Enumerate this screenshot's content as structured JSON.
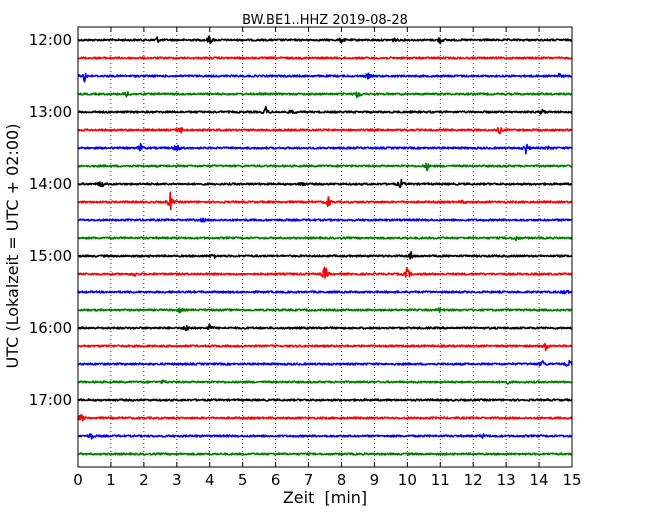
{
  "chart_data": {
    "type": "line",
    "title": "BW.BE1..HHZ 2019-08-28",
    "xlabel": "Zeit  [min]",
    "ylabel": "UTC (Lokalzeit = UTC + 02:00)",
    "xlim": [
      0,
      15
    ],
    "x_ticks": [
      0,
      1,
      2,
      3,
      4,
      5,
      6,
      7,
      8,
      9,
      10,
      11,
      12,
      13,
      14,
      15
    ],
    "y_tick_labels": [
      "12:00",
      "13:00",
      "14:00",
      "15:00",
      "16:00",
      "17:00"
    ],
    "grid": "vertical dotted",
    "trace_colors": [
      "#000000",
      "#ff0000",
      "#0000ff",
      "#008000"
    ],
    "traces": [
      {
        "start": "12:00",
        "events": [
          {
            "t": 2.4,
            "a": 0.3
          },
          {
            "t": 4.0,
            "a": 0.6
          },
          {
            "t": 8.0,
            "a": 0.3
          },
          {
            "t": 9.6,
            "a": 0.2
          },
          {
            "t": 11.0,
            "a": 0.4
          }
        ]
      },
      {
        "start": "12:15",
        "events": []
      },
      {
        "start": "12:30",
        "events": [
          {
            "t": 0.2,
            "a": 0.6
          },
          {
            "t": 8.8,
            "a": 0.3
          },
          {
            "t": 14.6,
            "a": 0.3
          }
        ]
      },
      {
        "start": "12:45",
        "events": [
          {
            "t": 1.5,
            "a": 0.4
          },
          {
            "t": 8.5,
            "a": 0.6
          }
        ]
      },
      {
        "start": "13:00",
        "events": [
          {
            "t": 5.7,
            "a": 0.5
          },
          {
            "t": 6.5,
            "a": 0.3
          },
          {
            "t": 14.1,
            "a": 0.3
          }
        ]
      },
      {
        "start": "13:15",
        "events": [
          {
            "t": 3.1,
            "a": 0.5
          },
          {
            "t": 12.8,
            "a": 0.4
          }
        ]
      },
      {
        "start": "13:30",
        "events": [
          {
            "t": 1.9,
            "a": 0.4
          },
          {
            "t": 3.0,
            "a": 0.6
          },
          {
            "t": 13.6,
            "a": 0.6
          },
          {
            "t": 14.3,
            "a": 0.2
          }
        ]
      },
      {
        "start": "13:45",
        "events": [
          {
            "t": 10.6,
            "a": 0.4
          }
        ]
      },
      {
        "start": "14:00",
        "events": [
          {
            "t": 0.7,
            "a": 0.5
          },
          {
            "t": 6.8,
            "a": 0.3
          },
          {
            "t": 9.8,
            "a": 0.5
          }
        ]
      },
      {
        "start": "14:15",
        "events": [
          {
            "t": 2.8,
            "a": 1.0
          },
          {
            "t": 7.6,
            "a": 0.6
          },
          {
            "t": 11.7,
            "a": 0.2
          }
        ]
      },
      {
        "start": "14:30",
        "events": [
          {
            "t": 3.8,
            "a": 0.2
          }
        ]
      },
      {
        "start": "14:45",
        "events": [
          {
            "t": 13.3,
            "a": 0.3
          }
        ]
      },
      {
        "start": "15:00",
        "events": [
          {
            "t": 4.1,
            "a": 0.4
          },
          {
            "t": 10.1,
            "a": 0.5
          }
        ]
      },
      {
        "start": "15:15",
        "events": [
          {
            "t": 1.7,
            "a": 0.3
          },
          {
            "t": 7.5,
            "a": 1.0
          },
          {
            "t": 10.0,
            "a": 0.8
          }
        ]
      },
      {
        "start": "15:30",
        "events": [
          {
            "t": 14.8,
            "a": 0.4
          }
        ]
      },
      {
        "start": "15:45",
        "events": [
          {
            "t": 3.1,
            "a": 0.3
          },
          {
            "t": 11.0,
            "a": 0.3
          }
        ]
      },
      {
        "start": "16:00",
        "events": [
          {
            "t": 3.3,
            "a": 0.5
          },
          {
            "t": 4.0,
            "a": 0.4
          }
        ]
      },
      {
        "start": "16:15",
        "events": [
          {
            "t": 14.2,
            "a": 0.5
          }
        ]
      },
      {
        "start": "16:30",
        "events": [
          {
            "t": 14.1,
            "a": 0.4
          },
          {
            "t": 14.9,
            "a": 0.6
          }
        ]
      },
      {
        "start": "16:45",
        "events": [
          {
            "t": 2.6,
            "a": 0.2
          },
          {
            "t": 13.0,
            "a": 0.3
          }
        ]
      },
      {
        "start": "17:00",
        "events": []
      },
      {
        "start": "17:15",
        "events": [
          {
            "t": 0.1,
            "a": 0.5
          }
        ]
      },
      {
        "start": "17:30",
        "events": [
          {
            "t": 0.4,
            "a": 0.4
          },
          {
            "t": 12.3,
            "a": 0.2
          }
        ]
      },
      {
        "start": "17:45",
        "events": []
      }
    ]
  }
}
